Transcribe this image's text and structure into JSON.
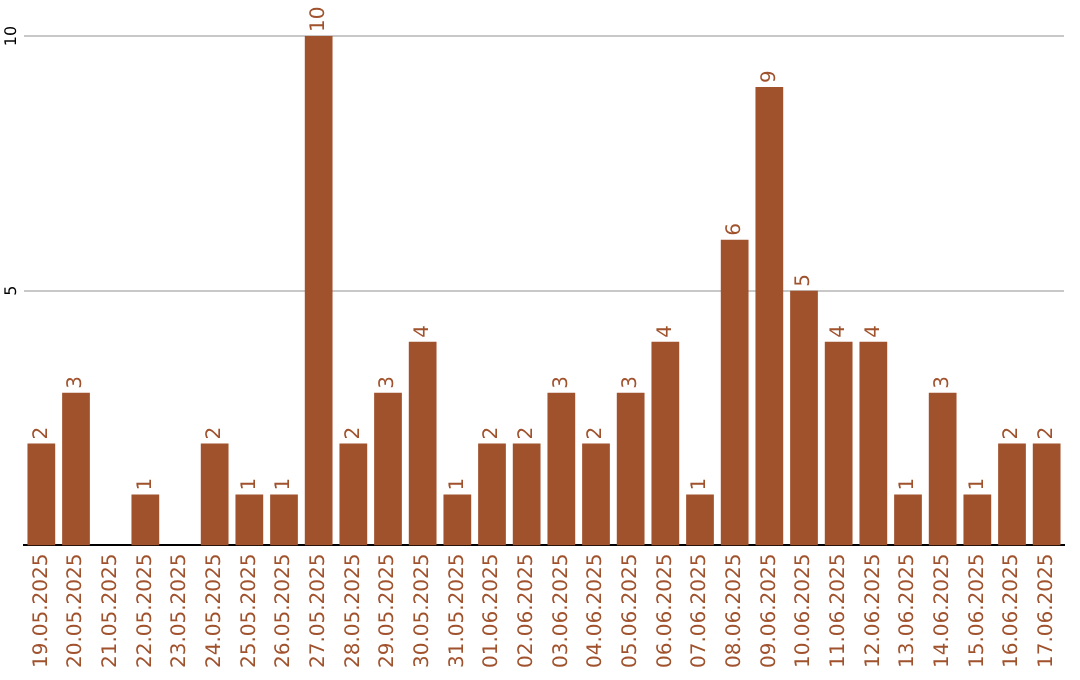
{
  "chart_data": {
    "type": "bar",
    "categories": [
      "19.05.2025",
      "20.05.2025",
      "21.05.2025",
      "22.05.2025",
      "23.05.2025",
      "24.05.2025",
      "25.05.2025",
      "26.05.2025",
      "27.05.2025",
      "28.05.2025",
      "29.05.2025",
      "30.05.2025",
      "31.05.2025",
      "01.06.2025",
      "02.06.2025",
      "03.06.2025",
      "04.06.2025",
      "05.06.2025",
      "06.06.2025",
      "07.06.2025",
      "08.06.2025",
      "09.06.2025",
      "10.06.2025",
      "11.06.2025",
      "12.06.2025",
      "13.06.2025",
      "14.06.2025",
      "15.06.2025",
      "16.06.2025",
      "17.06.2025"
    ],
    "values": [
      2,
      3,
      0,
      1,
      0,
      2,
      1,
      1,
      10,
      2,
      3,
      4,
      1,
      2,
      2,
      3,
      2,
      3,
      4,
      1,
      6,
      9,
      5,
      4,
      4,
      1,
      3,
      1,
      2,
      2
    ],
    "value_labels": [
      "2",
      "3",
      null,
      "1",
      null,
      "2",
      "1",
      "1",
      "10",
      "2",
      "3",
      "4",
      "1",
      "2",
      "2",
      "3",
      "2",
      "3",
      "4",
      "1",
      "6",
      "9",
      "5",
      "4",
      "4",
      "1",
      "3",
      "1",
      "2",
      "2"
    ],
    "color": "#a0522d",
    "ylim": [
      0,
      10
    ],
    "yticks": [
      5,
      10
    ],
    "grid": "y",
    "legend": false
  }
}
